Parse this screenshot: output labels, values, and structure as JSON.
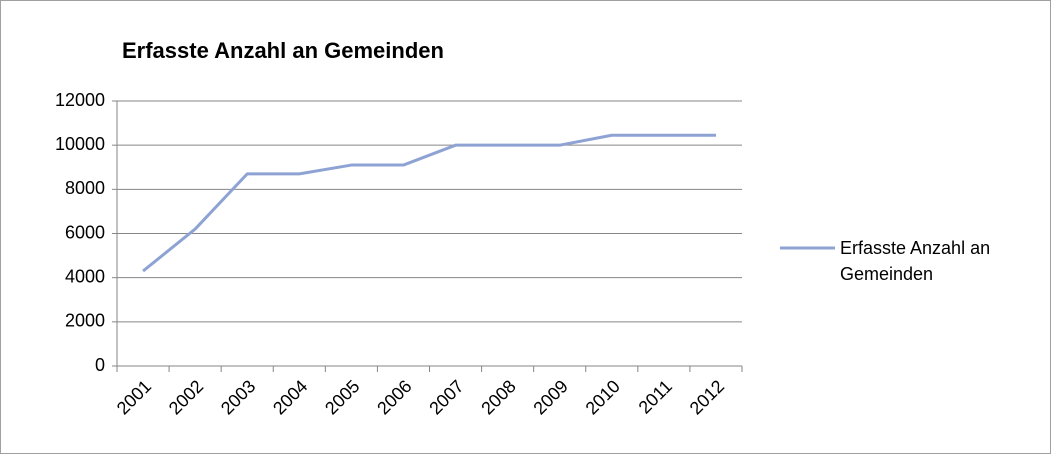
{
  "chart_data": {
    "type": "line",
    "title": "Erfasste Anzahl an Gemeinden",
    "categories": [
      "2001",
      "2002",
      "2003",
      "2004",
      "2005",
      "2006",
      "2007",
      "2008",
      "2009",
      "2010",
      "2011",
      "2012"
    ],
    "series": [
      {
        "name": "Erfasste Anzahl an Gemeinden",
        "color": "#8ea3d4",
        "values": [
          4300,
          6200,
          8700,
          8700,
          9100,
          9100,
          10000,
          10000,
          10000,
          10450,
          10450,
          10450
        ]
      }
    ],
    "ylim": [
      0,
      12000
    ],
    "yticks": [
      0,
      2000,
      4000,
      6000,
      8000,
      10000,
      12000
    ],
    "grid": true,
    "legend": "right"
  }
}
